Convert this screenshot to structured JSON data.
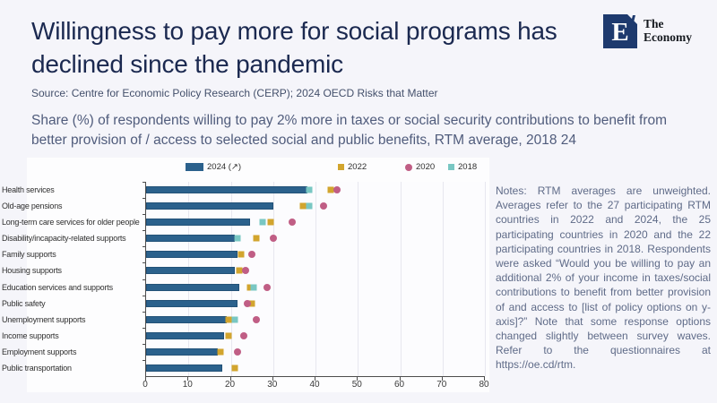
{
  "header": {
    "title": "Willingness to pay more for social programs has declined since the pandemic",
    "logo": {
      "letter": "E",
      "brand_line1": "The",
      "brand_line2": "Economy"
    }
  },
  "source": "Source: Centre for Economic Policy Research (CERP); 2024 OECD Risks that Matter",
  "subtitle": "Share (%) of respondents willing to pay 2% more in taxes or social security contributions to benefit from better provision of / access to selected social and public benefits, RTM average, 2018 24",
  "notes": "Notes: RTM averages are unweighted. Averages refer to the 27 participating RTM countries in 2022 and 2024, the 25 participating countries in 2020 and the 22 participating countries in 2018. Respondents were asked “Would you be willing to pay an additional 2% of your income in taxes/social contributions to benefit from better provision of and access to [list of policy options on y-axis]?” Note that some response options changed slightly between survey waves. Refer to the questionnaires at https://oe.cd/rtm.",
  "colors": {
    "bar_2024": "#2b618c",
    "square_2022": "#d2a52e",
    "circle_2020": "#c05e85",
    "square_2018": "#79c7c3",
    "title": "#1b2950",
    "logo_navy": "#1e3a6e"
  },
  "chart_data": {
    "type": "bar",
    "orientation": "horizontal",
    "title": "",
    "xlabel": "",
    "ylabel": "",
    "xlim": [
      0,
      80
    ],
    "xticks": [
      0,
      10,
      20,
      30,
      40,
      50,
      60,
      70,
      80
    ],
    "grid": true,
    "legend_position": "top",
    "legend": [
      {
        "label": "2024 (↗)",
        "marker": "bar",
        "color_key": "bar_2024"
      },
      {
        "label": "2022",
        "marker": "square",
        "color_key": "square_2022"
      },
      {
        "label": "2020",
        "marker": "circle",
        "color_key": "circle_2020"
      },
      {
        "label": "2018",
        "marker": "square",
        "color_key": "square_2018"
      }
    ],
    "categories": [
      "Health services",
      "Old-age pensions",
      "Long-term care services for older people",
      "Disability/incapacity-related supports",
      "Family supports",
      "Housing supports",
      "Education services and supports",
      "Public safety",
      "Unemployment supports",
      "Income supports",
      "Employment supports",
      "Public transportation"
    ],
    "series": [
      {
        "name": "2024 (↗)",
        "type": "bar",
        "values": [
          38,
          30,
          24.5,
          21,
          21.5,
          21,
          22,
          21.5,
          19,
          18.5,
          17,
          18
        ]
      },
      {
        "name": "2022",
        "type": "square",
        "values": [
          43.5,
          37,
          29.5,
          26,
          22.5,
          22,
          24.5,
          25,
          19.5,
          19.5,
          17.5,
          21
        ]
      },
      {
        "name": "2020",
        "type": "circle",
        "values": [
          45,
          42,
          34.5,
          30,
          25,
          23.5,
          28.5,
          24,
          26,
          23,
          21.5,
          null
        ]
      },
      {
        "name": "2018",
        "type": "square",
        "values": [
          38.5,
          38.5,
          27.5,
          21.5,
          null,
          null,
          25.5,
          null,
          21,
          null,
          null,
          null
        ]
      }
    ]
  },
  "legend_layout_lefts": [
    177,
    347,
    422,
    470
  ]
}
